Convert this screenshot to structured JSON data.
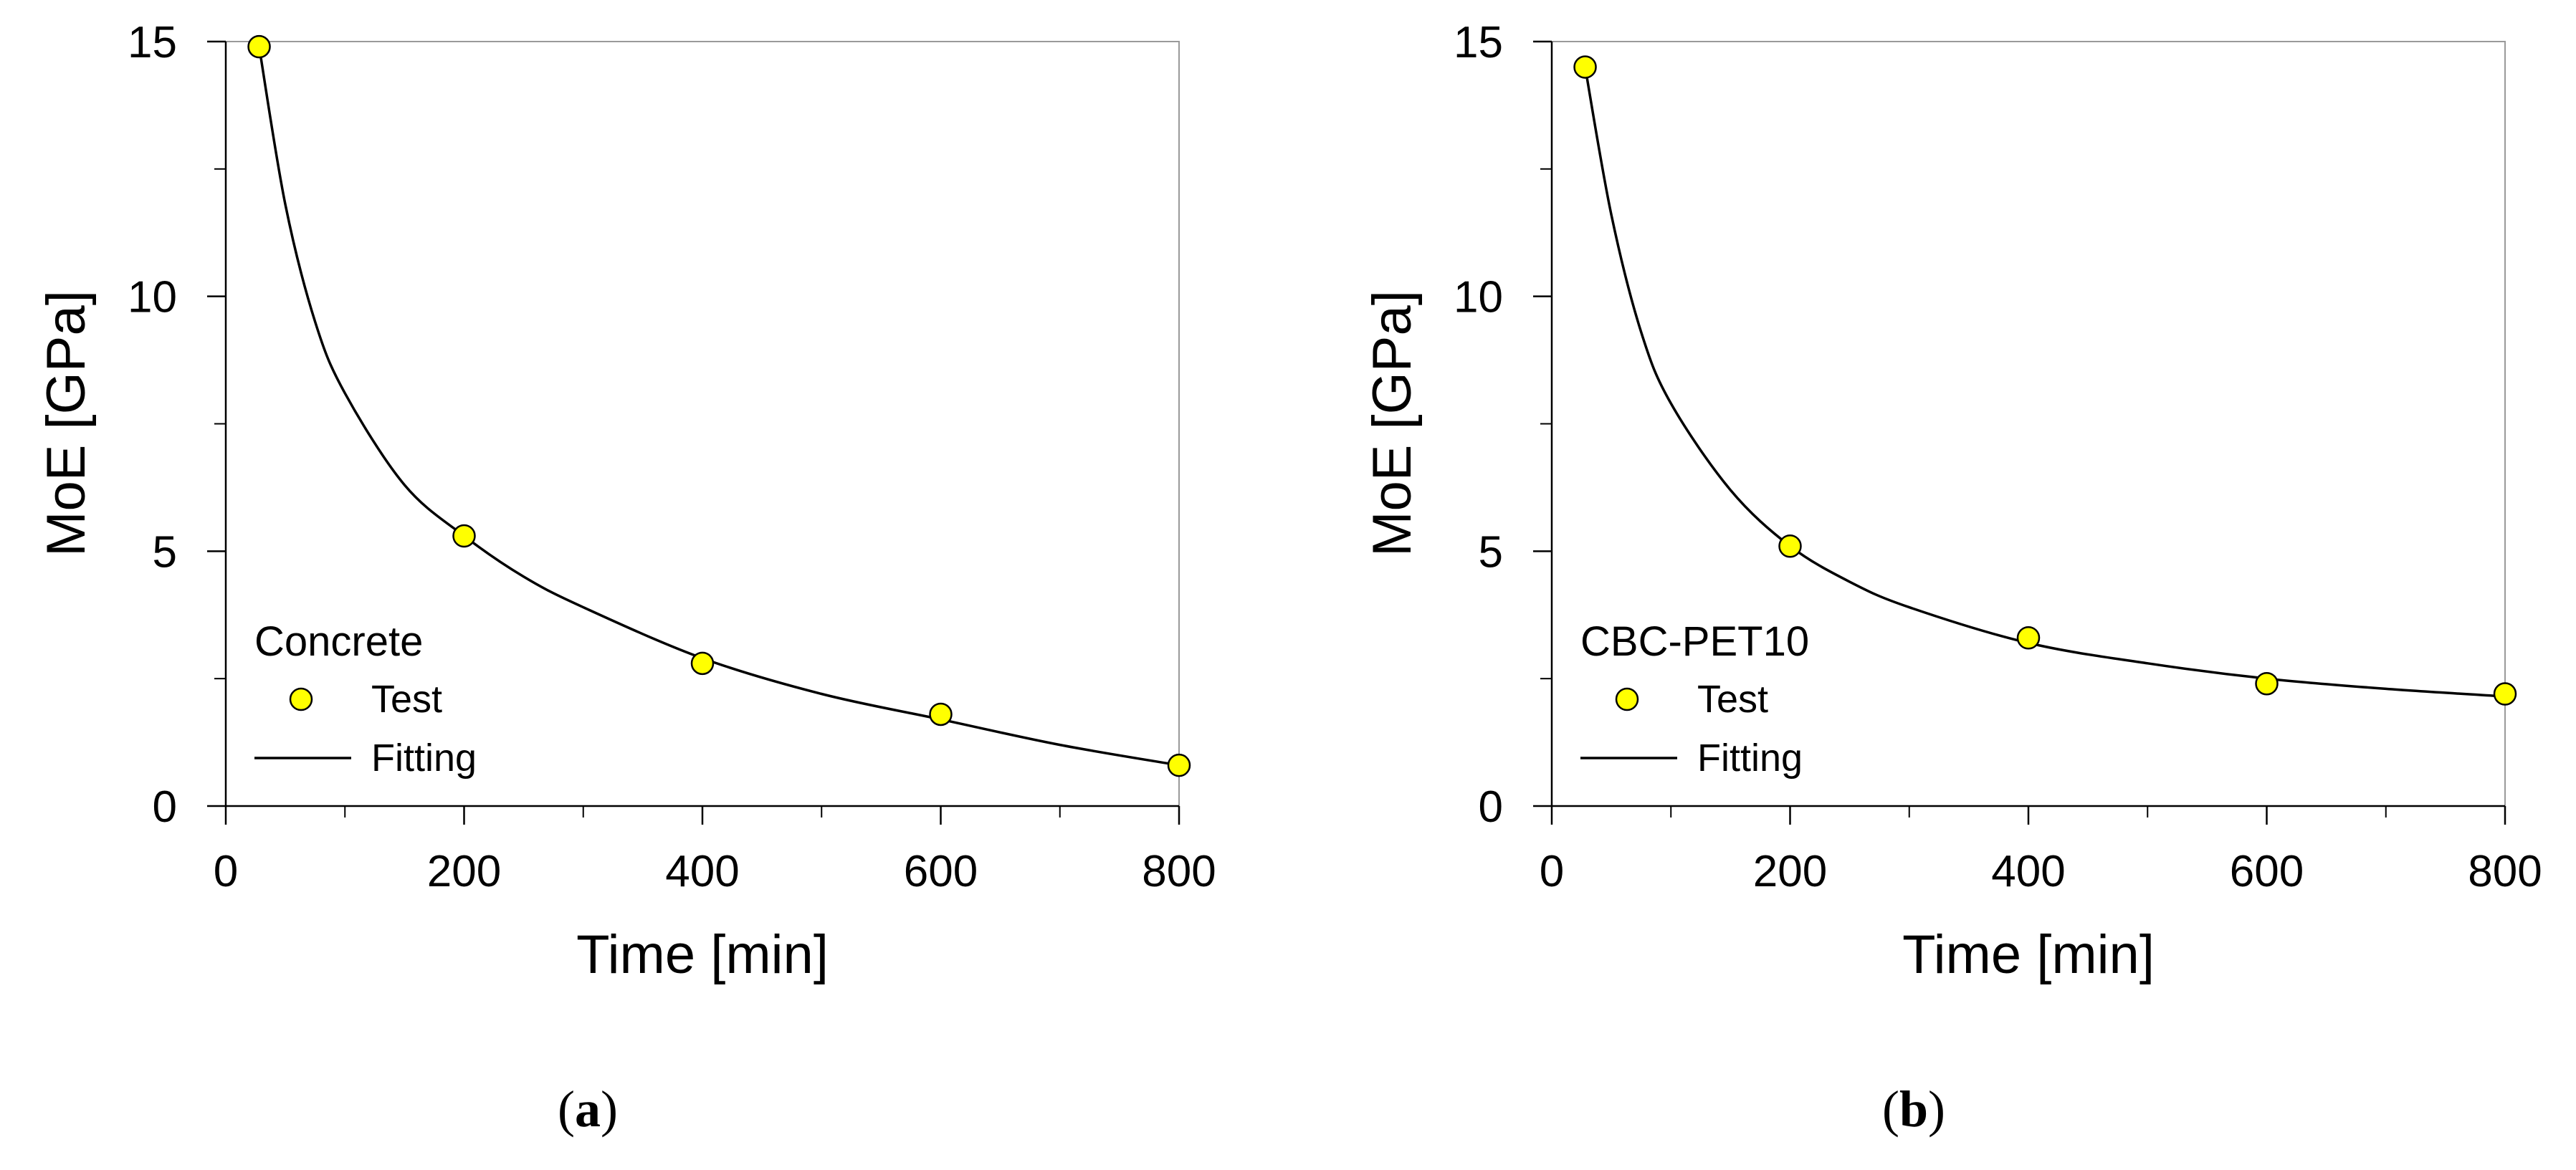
{
  "chart_data": [
    {
      "id": "a",
      "type": "scatter",
      "panel_label": "a",
      "legend_title": "Concrete",
      "xlabel": "Time  [min]",
      "ylabel": "MoE  [GPa]",
      "xlim": [
        0,
        800
      ],
      "ylim": [
        0,
        15
      ],
      "x_ticks": [
        0,
        200,
        400,
        600,
        800
      ],
      "x_minor_ticks": [
        100,
        300,
        500,
        700
      ],
      "y_ticks": [
        0,
        5,
        10,
        15
      ],
      "y_minor_ticks": [
        2.5,
        7.5,
        12.5
      ],
      "series": [
        {
          "name": "Test",
          "kind": "markers",
          "color": "#ffff00",
          "x": [
            28,
            200,
            400,
            600,
            800
          ],
          "y": [
            14.9,
            5.3,
            2.8,
            1.8,
            0.8
          ]
        },
        {
          "name": "Fitting",
          "kind": "line",
          "color": "#000000",
          "x": [
            28,
            50,
            75,
            100,
            150,
            200,
            250,
            300,
            400,
            500,
            600,
            700,
            800
          ],
          "y": [
            14.9,
            11.8,
            9.5,
            8.1,
            6.3,
            5.3,
            4.5,
            3.9,
            2.9,
            2.2,
            1.7,
            1.2,
            0.8
          ]
        }
      ]
    },
    {
      "id": "b",
      "type": "scatter",
      "panel_label": "b",
      "legend_title": "CBC-PET10",
      "xlabel": "Time  [min]",
      "ylabel": "MoE  [GPa]",
      "xlim": [
        0,
        800
      ],
      "ylim": [
        0,
        15
      ],
      "x_ticks": [
        0,
        200,
        400,
        600,
        800
      ],
      "x_minor_ticks": [
        100,
        300,
        500,
        700
      ],
      "y_ticks": [
        0,
        5,
        10,
        15
      ],
      "y_minor_ticks": [
        2.5,
        7.5,
        12.5
      ],
      "series": [
        {
          "name": "Test",
          "kind": "markers",
          "color": "#ffff00",
          "x": [
            28,
            200,
            400,
            600,
            800
          ],
          "y": [
            14.5,
            5.1,
            3.3,
            2.4,
            2.2
          ]
        },
        {
          "name": "Fitting",
          "kind": "line",
          "color": "#000000",
          "x": [
            28,
            50,
            75,
            100,
            150,
            200,
            250,
            300,
            400,
            500,
            600,
            700,
            800
          ],
          "y": [
            14.5,
            11.6,
            9.3,
            7.9,
            6.2,
            5.1,
            4.4,
            3.9,
            3.2,
            2.8,
            2.5,
            2.3,
            2.15
          ]
        }
      ]
    }
  ]
}
